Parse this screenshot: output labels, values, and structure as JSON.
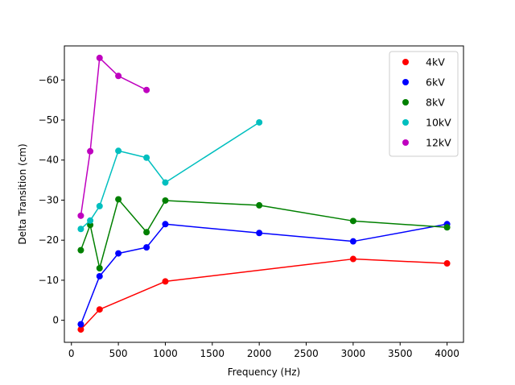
{
  "chart_data": {
    "type": "line",
    "xlabel": "Frequency (Hz)",
    "ylabel": "Delta Transition (cm)",
    "xlim": [
      -75,
      4175
    ],
    "ylim": [
      5.5,
      -68.5
    ],
    "y_axis_inverted": true,
    "grid": false,
    "legend_position": "top-right",
    "x_ticks": [
      0,
      500,
      1000,
      1500,
      2000,
      2500,
      3000,
      3500,
      4000
    ],
    "y_ticks": [
      0,
      -10,
      -20,
      -30,
      -40,
      -50,
      -60
    ],
    "series": [
      {
        "name": "4kV",
        "color": "#ff0000",
        "points": [
          [
            100,
            2.3
          ],
          [
            300,
            -2.7
          ],
          [
            1000,
            -9.7
          ],
          [
            3000,
            -15.3
          ],
          [
            4000,
            -14.2
          ]
        ]
      },
      {
        "name": "6kV",
        "color": "#0000ff",
        "points": [
          [
            100,
            1.0
          ],
          [
            300,
            -11.0
          ],
          [
            500,
            -16.7
          ],
          [
            800,
            -18.2
          ],
          [
            1000,
            -24.0
          ],
          [
            2000,
            -21.8
          ],
          [
            3000,
            -19.7
          ],
          [
            4000,
            -24.0
          ]
        ]
      },
      {
        "name": "8kV",
        "color": "#008000",
        "points": [
          [
            100,
            -17.5
          ],
          [
            200,
            -23.8
          ],
          [
            300,
            -13.0
          ],
          [
            500,
            -30.2
          ],
          [
            800,
            -22.0
          ],
          [
            1000,
            -29.9
          ],
          [
            2000,
            -28.7
          ],
          [
            3000,
            -24.8
          ],
          [
            4000,
            -23.2
          ]
        ]
      },
      {
        "name": "10kV",
        "color": "#00bfbf",
        "points": [
          [
            100,
            -22.8
          ],
          [
            200,
            -24.9
          ],
          [
            300,
            -28.5
          ],
          [
            500,
            -42.3
          ],
          [
            800,
            -40.6
          ],
          [
            1000,
            -34.4
          ],
          [
            2000,
            -49.4
          ]
        ]
      },
      {
        "name": "12kV",
        "color": "#bf00bf",
        "points": [
          [
            100,
            -26.1
          ],
          [
            200,
            -42.2
          ],
          [
            300,
            -65.5
          ],
          [
            500,
            -61.0
          ],
          [
            800,
            -57.5
          ]
        ]
      }
    ]
  }
}
